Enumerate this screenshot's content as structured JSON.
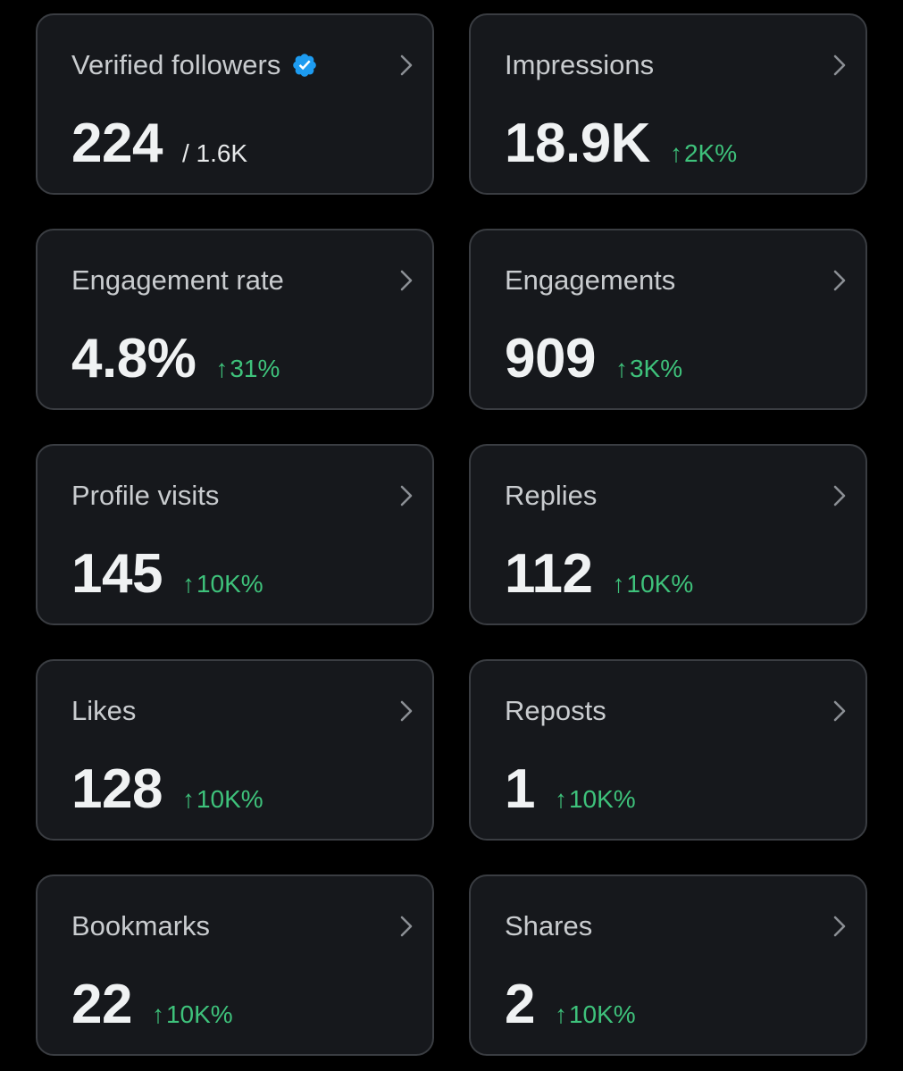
{
  "cards": [
    {
      "title": "Verified followers",
      "value": "224",
      "sub": "/ 1.6K",
      "change": "",
      "verified": true
    },
    {
      "title": "Impressions",
      "value": "18.9K",
      "sub": "",
      "change": "2K%"
    },
    {
      "title": "Engagement rate",
      "value": "4.8%",
      "sub": "",
      "change": "31%"
    },
    {
      "title": "Engagements",
      "value": "909",
      "sub": "",
      "change": "3K%"
    },
    {
      "title": "Profile visits",
      "value": "145",
      "sub": "",
      "change": "10K%"
    },
    {
      "title": "Replies",
      "value": "112",
      "sub": "",
      "change": "10K%"
    },
    {
      "title": "Likes",
      "value": "128",
      "sub": "",
      "change": "10K%"
    },
    {
      "title": "Reposts",
      "value": "1",
      "sub": "",
      "change": "10K%"
    },
    {
      "title": "Bookmarks",
      "value": "22",
      "sub": "",
      "change": "10K%"
    },
    {
      "title": "Shares",
      "value": "2",
      "sub": "",
      "change": "10K%"
    }
  ],
  "icons": {
    "verified": "verified-badge-icon",
    "chevron": "chevron-right-icon",
    "arrow": "arrow-up-icon"
  },
  "colors": {
    "background": "#000000",
    "card": "#16181c",
    "border": "#3a3d42",
    "positive": "#3ec27b",
    "verified": "#1d9bf0"
  }
}
